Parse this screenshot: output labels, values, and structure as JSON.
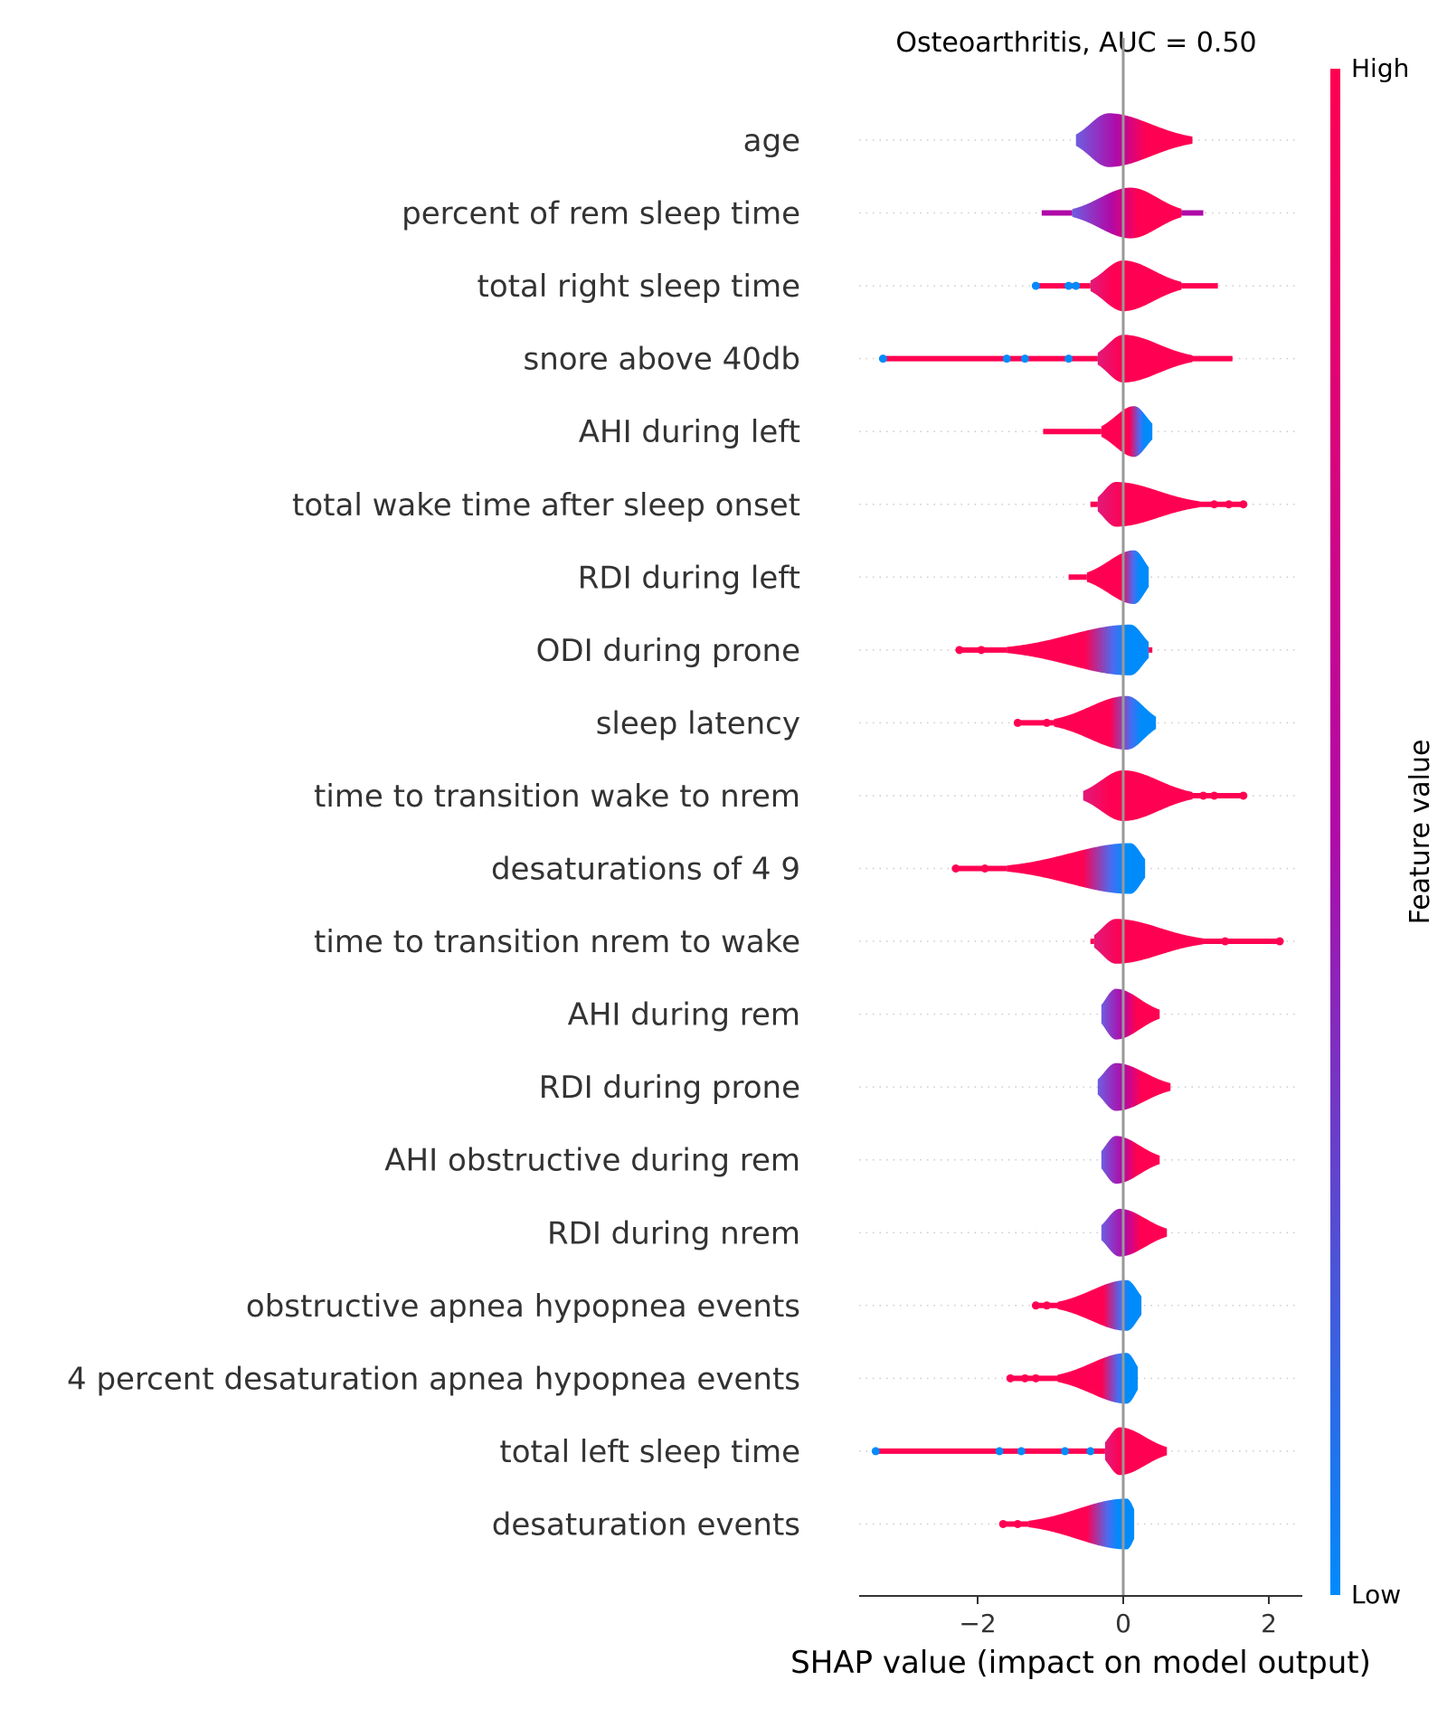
{
  "chart_data": {
    "type": "violin",
    "title": "Osteoarthritis, AUC =  0.50",
    "xlabel": "SHAP value (impact on model output)",
    "xlim": [
      -3.65,
      2.45
    ],
    "x_ticks": [
      -2,
      0,
      2
    ],
    "x_tick_labels": [
      "−2",
      "0",
      "2"
    ],
    "colorbar": {
      "label": "Feature value",
      "high_label": "High",
      "low_label": "Low",
      "colors": [
        "#008bfb",
        "#ff0052"
      ]
    },
    "features": [
      {
        "name": "age",
        "min": -0.65,
        "max": 0.95,
        "core": [
          -0.65,
          0.95
        ],
        "peak": -0.2,
        "width": 0.9,
        "color": "mix",
        "hi_side": "right",
        "outliers": []
      },
      {
        "name": "percent of rem sleep time",
        "min": -1.12,
        "max": 1.1,
        "core": [
          -0.7,
          0.8
        ],
        "peak": 0.1,
        "width": 0.85,
        "color": "mix",
        "hi_side": "right",
        "outliers": []
      },
      {
        "name": "total right sleep time",
        "min": -1.2,
        "max": 1.3,
        "core": [
          -0.45,
          0.8
        ],
        "peak": 0.0,
        "width": 0.85,
        "color": "high",
        "hi_side": "right",
        "outliers": [
          -1.2,
          -0.75,
          -0.65
        ]
      },
      {
        "name": "snore above 40db",
        "min": -3.3,
        "max": 1.5,
        "core": [
          -0.35,
          0.95
        ],
        "peak": 0.0,
        "width": 0.8,
        "color": "high",
        "hi_side": "right",
        "outliers": [
          -3.3,
          -1.6,
          -1.35,
          -0.75
        ]
      },
      {
        "name": "AHI during left",
        "min": -1.1,
        "max": 0.4,
        "core": [
          -0.3,
          0.4
        ],
        "peak": 0.15,
        "width": 0.85,
        "color": "low",
        "hi_side": "left",
        "outliers": []
      },
      {
        "name": "total wake time after sleep onset",
        "min": -0.45,
        "max": 1.65,
        "core": [
          -0.35,
          1.05
        ],
        "peak": -0.1,
        "width": 0.75,
        "color": "high",
        "hi_side": "right",
        "outliers": [
          1.25,
          1.45,
          1.65
        ]
      },
      {
        "name": "RDI during left",
        "min": -0.75,
        "max": 0.35,
        "core": [
          -0.5,
          0.35
        ],
        "peak": 0.15,
        "width": 0.9,
        "color": "low",
        "hi_side": "left",
        "outliers": []
      },
      {
        "name": "ODI during prone",
        "min": -2.25,
        "max": 0.4,
        "core": [
          -1.6,
          0.35
        ],
        "peak": 0.1,
        "width": 0.85,
        "color": "low",
        "hi_side": "left",
        "outliers": [
          -2.25,
          -1.95
        ]
      },
      {
        "name": "sleep latency",
        "min": -1.45,
        "max": 0.45,
        "core": [
          -0.95,
          0.45
        ],
        "peak": 0.05,
        "width": 0.9,
        "color": "low",
        "hi_side": "left",
        "outliers": [
          -1.45,
          -1.05
        ]
      },
      {
        "name": "time to transition wake to nrem",
        "min": -0.55,
        "max": 1.65,
        "core": [
          -0.55,
          0.95
        ],
        "peak": 0.0,
        "width": 0.85,
        "color": "high",
        "hi_side": "right",
        "outliers": [
          1.1,
          1.25,
          1.65
        ]
      },
      {
        "name": "desaturations of 4 9",
        "min": -2.3,
        "max": 0.3,
        "core": [
          -1.6,
          0.3
        ],
        "peak": 0.1,
        "width": 0.85,
        "color": "low",
        "hi_side": "left",
        "outliers": [
          -2.3,
          -1.9
        ]
      },
      {
        "name": "time to transition nrem to wake",
        "min": -0.45,
        "max": 2.15,
        "core": [
          -0.4,
          1.1
        ],
        "peak": -0.1,
        "width": 0.75,
        "color": "high",
        "hi_side": "right",
        "outliers": [
          1.4,
          2.15
        ]
      },
      {
        "name": "AHI during rem",
        "min": -0.3,
        "max": 0.5,
        "core": [
          -0.3,
          0.5
        ],
        "peak": -0.1,
        "width": 0.85,
        "color": "mix",
        "hi_side": "right",
        "outliers": []
      },
      {
        "name": "RDI during prone",
        "min": -0.35,
        "max": 0.65,
        "core": [
          -0.35,
          0.65
        ],
        "peak": -0.1,
        "width": 0.8,
        "color": "mix",
        "hi_side": "right",
        "outliers": []
      },
      {
        "name": "AHI obstructive during rem",
        "min": -0.3,
        "max": 0.5,
        "core": [
          -0.3,
          0.5
        ],
        "peak": -0.1,
        "width": 0.8,
        "color": "mix",
        "hi_side": "right",
        "outliers": []
      },
      {
        "name": "RDI during nrem",
        "min": -0.3,
        "max": 0.6,
        "core": [
          -0.3,
          0.6
        ],
        "peak": -0.05,
        "width": 0.8,
        "color": "mix",
        "hi_side": "right",
        "outliers": []
      },
      {
        "name": "obstructive apnea hypopnea events",
        "min": -1.2,
        "max": 0.25,
        "core": [
          -0.9,
          0.25
        ],
        "peak": 0.05,
        "width": 0.85,
        "color": "low",
        "hi_side": "left",
        "outliers": [
          -1.2,
          -1.05
        ]
      },
      {
        "name": "4 percent desaturation apnea hypopnea events",
        "min": -1.55,
        "max": 0.2,
        "core": [
          -0.9,
          0.2
        ],
        "peak": 0.05,
        "width": 0.85,
        "color": "low",
        "hi_side": "left",
        "outliers": [
          -1.55,
          -1.35,
          -1.2
        ]
      },
      {
        "name": "total left sleep time",
        "min": -3.4,
        "max": 0.6,
        "core": [
          -0.25,
          0.6
        ],
        "peak": -0.05,
        "width": 0.8,
        "color": "high",
        "hi_side": "right",
        "outliers": [
          -3.4,
          -1.7,
          -1.4,
          -0.8,
          -0.45
        ]
      },
      {
        "name": "desaturation events",
        "min": -1.65,
        "max": 0.15,
        "core": [
          -1.3,
          0.15
        ],
        "peak": 0.05,
        "width": 0.85,
        "color": "low",
        "hi_side": "left",
        "outliers": [
          -1.65,
          -1.45
        ]
      }
    ]
  }
}
